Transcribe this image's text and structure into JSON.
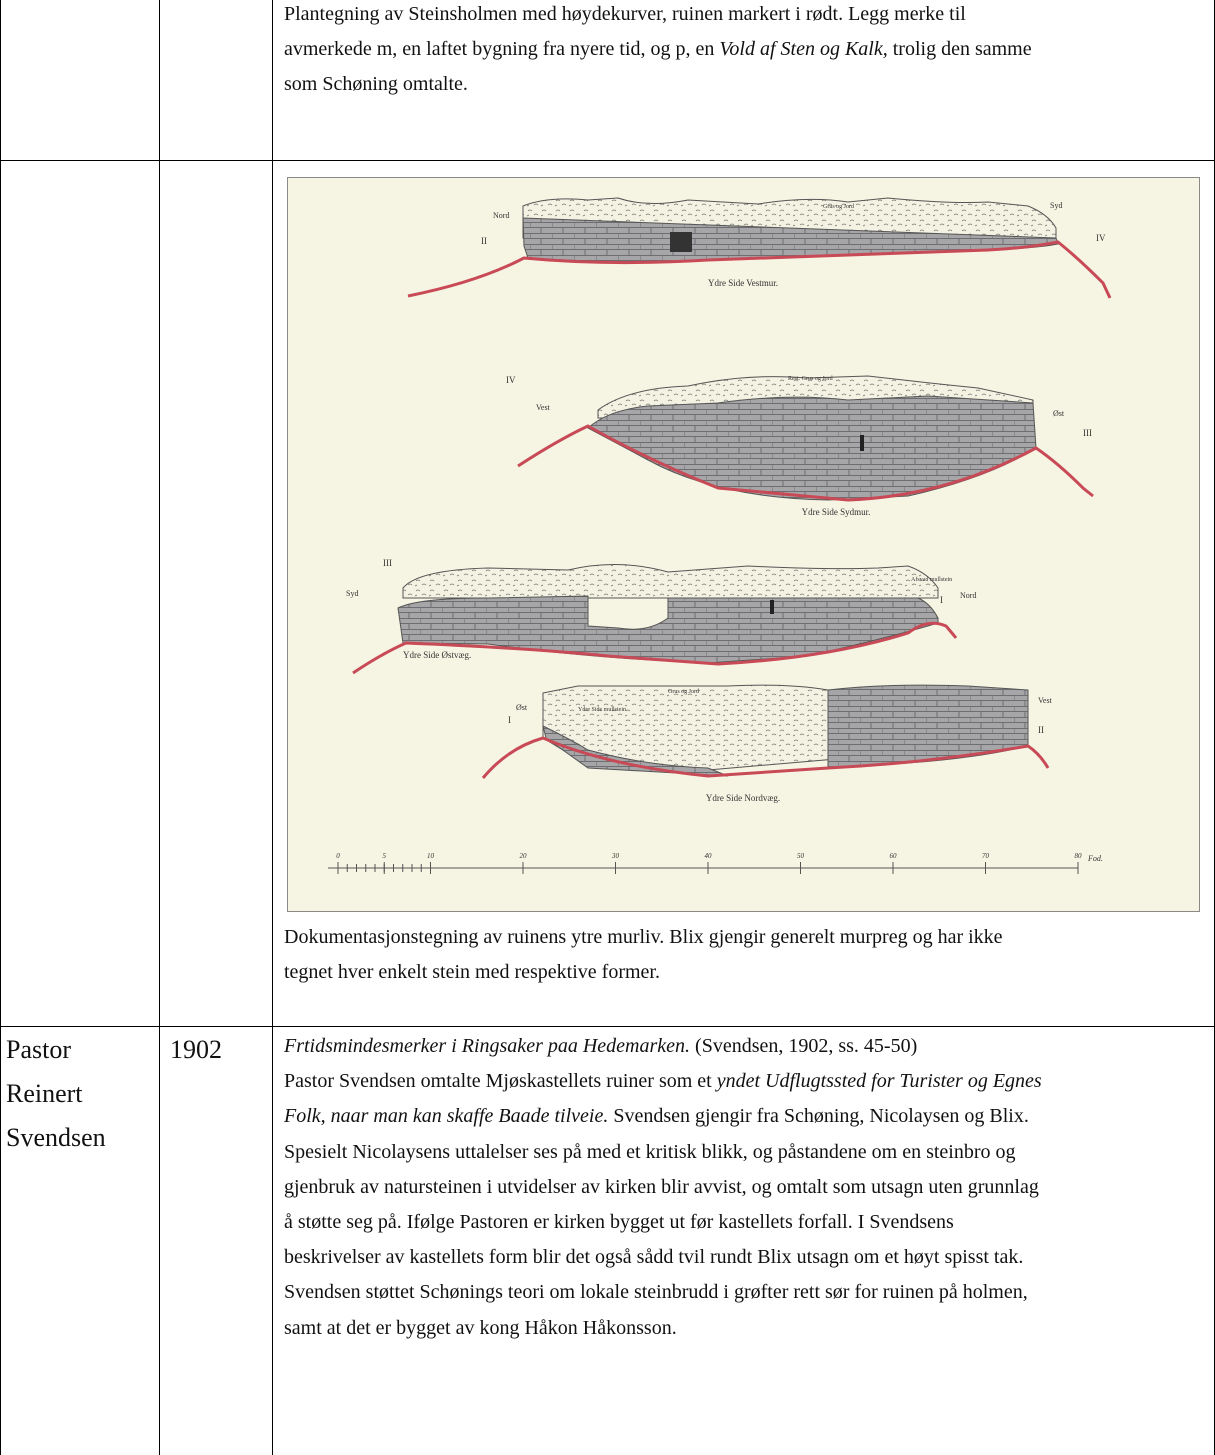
{
  "row1": {
    "caption_lines": [
      [
        {
          "t": "Plantegning av Steinsholmen med høydekurver, ruinen markert i rødt. Legg merke til"
        }
      ],
      [
        {
          "t": "avmerkede m, en laftet bygning fra nyere tid, og p, en "
        },
        {
          "t": "Vold af Sten og Kalk,",
          "i": true
        },
        {
          "t": " trolig den samme"
        }
      ],
      [
        {
          "t": "som Schøning omtalte."
        }
      ]
    ]
  },
  "row2": {
    "figure": {
      "views": [
        {
          "caption": "Ydre Side Vestmur.",
          "left_dir": "Nord",
          "right_dir": "Syd",
          "left_num": "II",
          "right_num": "IV",
          "top_note": "Grus og Jord"
        },
        {
          "caption": "Ydre Side Sydmur.",
          "left_dir": "Vest",
          "right_dir": "Øst",
          "left_num": "IV",
          "right_num": "III",
          "top_note": "Rest. Grus og Jord"
        },
        {
          "caption": "Ydre Side Østvæg.",
          "left_dir": "Syd",
          "right_dir": "Nord",
          "left_num": "III",
          "right_num": "I",
          "top_note": "Afsvad mullstein"
        },
        {
          "caption": "Ydre Side Nordvæg.",
          "left_dir": "Øst",
          "right_dir": "Vest",
          "left_num": "I",
          "right_num": "II",
          "top_note": "Grus og Jord",
          "inner_note": "Ydre Side mullstein"
        }
      ],
      "scale": {
        "ticks": [
          "0",
          "5",
          "10",
          "20",
          "30",
          "40",
          "50",
          "60",
          "70",
          "80"
        ],
        "unit": "Fod."
      }
    },
    "caption_lines": [
      [
        {
          "t": "Dokumentasjonstegning av ruinens ytre murliv. Blix gjengir generelt murpreg og har ikke"
        }
      ],
      [
        {
          "t": "tegnet hver enkelt stein med respektive former."
        }
      ]
    ]
  },
  "row3": {
    "author_lines": [
      "Pastor",
      "Reinert",
      "Svendsen"
    ],
    "year": "1902",
    "text_lines": [
      [
        {
          "t": "Frtidsmindesmerker i Ringsaker paa Hedemarken.",
          "i": true
        },
        {
          "t": " (Svendsen, 1902, ss. 45-50)"
        }
      ],
      [
        {
          "t": "Pastor Svendsen omtalte Mjøskastellets ruiner som et "
        },
        {
          "t": "yndet Udflugtssted for Turister og Egnes",
          "i": true
        }
      ],
      [
        {
          "t": "Folk, naar man kan skaffe Baade tilveie.",
          "i": true
        },
        {
          "t": " Svendsen gjengir fra Schøning, Nicolaysen og Blix."
        }
      ],
      [
        {
          "t": "Spesielt Nicolaysens uttalelser ses på med et kritisk blikk, og påstandene om en steinbro og"
        }
      ],
      [
        {
          "t": "gjenbruk av natursteinen i utvidelser av kirken blir avvist, og omtalt som utsagn uten grunnlag"
        }
      ],
      [
        {
          "t": "å støtte seg på. Ifølge Pastoren er kirken bygget ut før kastellets forfall. I Svendsens"
        }
      ],
      [
        {
          "t": "beskrivelser av kastellets form blir det også sådd tvil rundt Blix utsagn om et høyt spisst tak."
        }
      ],
      [
        {
          "t": "Svendsen støttet Schønings teori om lokale steinbrudd i grøfter rett sør for ruinen på holmen,"
        }
      ],
      [
        {
          "t": "samt at det er bygget av kong Håkon Håkonsson."
        }
      ]
    ]
  }
}
